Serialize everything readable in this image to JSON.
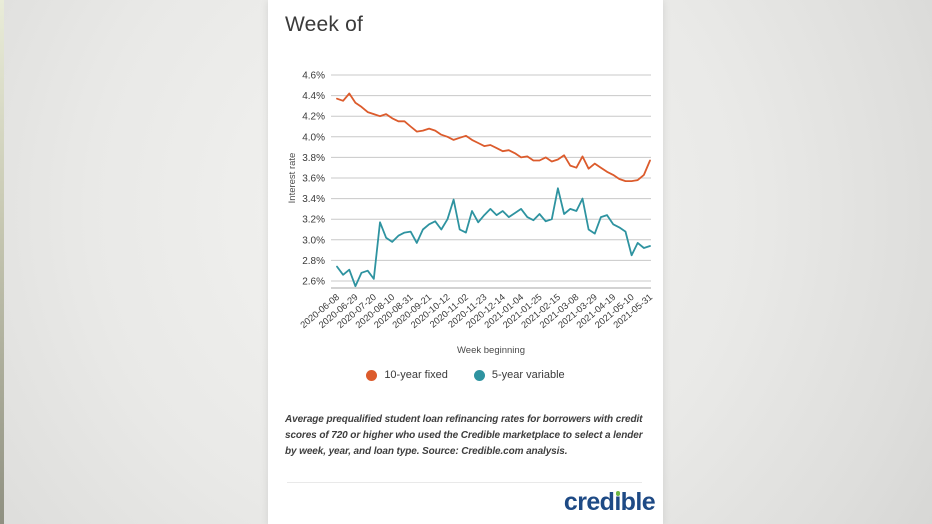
{
  "card": {
    "title": "Week of",
    "footnote": "Average prequalified student loan refinancing rates for borrowers with credit scores of 720 or higher who used the Credible marketplace to select a lender by week, year, and loan type. Source: Credible.com analysis.",
    "logo": {
      "text": "credible",
      "part1": "cred",
      "dotless_i": "ı",
      "part2": "ble",
      "navy": "#1e4a85",
      "green": "#6fb744"
    }
  },
  "chart_data": {
    "type": "line",
    "title": "Week of",
    "xlabel": "Week beginning",
    "ylabel": "Interest rate",
    "ylim": [
      2.6,
      4.6
    ],
    "yticks": [
      4.6,
      4.4,
      4.2,
      4.0,
      3.8,
      3.6,
      3.4,
      3.2,
      3.0,
      2.8,
      2.6
    ],
    "ytick_labels": [
      "4.6%",
      "4.4%",
      "4.2%",
      "4.0%",
      "3.8%",
      "3.6%",
      "3.4%",
      "3.2%",
      "3.0%",
      "2.8%",
      "2.6%"
    ],
    "grid": true,
    "legend_position": "bottom",
    "x": [
      "2020-06-08",
      "2020-06-15",
      "2020-06-22",
      "2020-06-29",
      "2020-07-06",
      "2020-07-13",
      "2020-07-20",
      "2020-07-27",
      "2020-08-03",
      "2020-08-10",
      "2020-08-17",
      "2020-08-24",
      "2020-08-31",
      "2020-09-07",
      "2020-09-14",
      "2020-09-21",
      "2020-09-28",
      "2020-10-05",
      "2020-10-12",
      "2020-10-19",
      "2020-10-26",
      "2020-11-02",
      "2020-11-09",
      "2020-11-16",
      "2020-11-23",
      "2020-11-30",
      "2020-12-07",
      "2020-12-14",
      "2020-12-21",
      "2020-12-28",
      "2021-01-04",
      "2021-01-11",
      "2021-01-18",
      "2021-01-25",
      "2021-02-01",
      "2021-02-08",
      "2021-02-15",
      "2021-02-22",
      "2021-03-01",
      "2021-03-08",
      "2021-03-15",
      "2021-03-22",
      "2021-03-29",
      "2021-04-05",
      "2021-04-12",
      "2021-04-19",
      "2021-04-26",
      "2021-05-03",
      "2021-05-10",
      "2021-05-17",
      "2021-05-24",
      "2021-05-31"
    ],
    "xtick_every": 3,
    "xtick_labels": [
      "2020-06-08",
      "2020-06-29",
      "2020-07-20",
      "2020-08-10",
      "2020-08-31",
      "2020-09-21",
      "2020-10-12",
      "2020-11-02",
      "2020-11-23",
      "2020-12-14",
      "2021-01-04",
      "2021-01-25",
      "2021-02-15",
      "2021-03-08",
      "2021-03-29",
      "2021-04-19",
      "2021-05-10",
      "2021-05-31"
    ],
    "series": [
      {
        "name": "10-year fixed",
        "color": "#dc5b2c",
        "values": [
          4.37,
          4.35,
          4.42,
          4.33,
          4.29,
          4.24,
          4.22,
          4.2,
          4.22,
          4.18,
          4.15,
          4.15,
          4.1,
          4.05,
          4.06,
          4.08,
          4.06,
          4.02,
          4.0,
          3.97,
          3.99,
          4.01,
          3.97,
          3.94,
          3.91,
          3.92,
          3.89,
          3.86,
          3.87,
          3.84,
          3.8,
          3.81,
          3.77,
          3.77,
          3.8,
          3.76,
          3.78,
          3.82,
          3.72,
          3.7,
          3.81,
          3.69,
          3.74,
          3.7,
          3.66,
          3.63,
          3.59,
          3.57,
          3.57,
          3.58,
          3.63,
          3.77
        ]
      },
      {
        "name": "5-year variable",
        "color": "#2e93a0",
        "values": [
          2.74,
          2.66,
          2.71,
          2.55,
          2.68,
          2.7,
          2.62,
          3.17,
          3.02,
          2.98,
          3.04,
          3.07,
          3.08,
          2.97,
          3.1,
          3.15,
          3.18,
          3.1,
          3.2,
          3.39,
          3.1,
          3.07,
          3.28,
          3.17,
          3.24,
          3.3,
          3.24,
          3.28,
          3.22,
          3.26,
          3.3,
          3.22,
          3.19,
          3.25,
          3.18,
          3.2,
          3.5,
          3.25,
          3.3,
          3.28,
          3.4,
          3.1,
          3.06,
          3.22,
          3.24,
          3.15,
          3.12,
          3.08,
          2.85,
          2.97,
          2.92,
          2.94
        ]
      }
    ]
  }
}
